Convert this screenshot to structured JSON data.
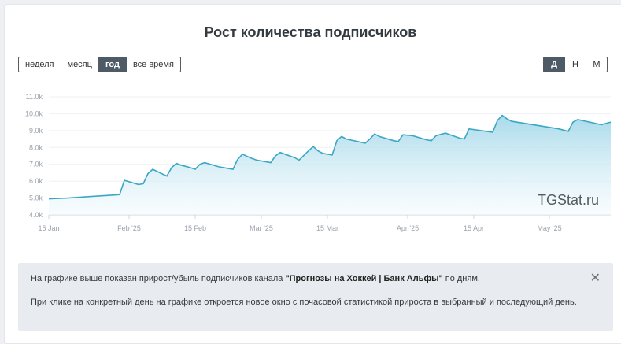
{
  "card": {
    "title": "Рост количества подписчиков"
  },
  "period_tabs": [
    "неделя",
    "месяц",
    "год",
    "все время"
  ],
  "period_active": "год",
  "granularity_tabs": [
    "Д",
    "Н",
    "М"
  ],
  "granularity_active": "Д",
  "watermark": "TGStat.ru",
  "colors": {
    "line": "#3ba7c4",
    "fill_top": "#9fd6e8",
    "fill_bottom": "#f2fafd",
    "active_button": "#4e5a66"
  },
  "chart_data": {
    "type": "area",
    "xlabel": "",
    "ylabel": "",
    "ylim": [
      4000,
      11000
    ],
    "y_ticks": [
      "4.0k",
      "5.0k",
      "6.0k",
      "7.0k",
      "8.0k",
      "9.0k",
      "10.0k",
      "11.0k"
    ],
    "x_ticks": [
      "15 Jan",
      "Feb '25",
      "15 Feb",
      "Mar '25",
      "15 Mar",
      "Apr '25",
      "15 Apr",
      "May '25"
    ],
    "x_tick_dates": [
      "2025-01-15",
      "2025-02-01",
      "2025-02-15",
      "2025-03-01",
      "2025-03-15",
      "2025-04-01",
      "2025-04-15",
      "2025-05-01"
    ],
    "x_range": [
      "2025-01-15",
      "2025-05-14"
    ],
    "grid": true,
    "series": [
      {
        "x": [
          "2025-01-15",
          "2025-01-19",
          "2025-01-23",
          "2025-01-27",
          "2025-01-29",
          "2025-01-30",
          "2025-01-31",
          "2025-02-03",
          "2025-02-04",
          "2025-02-05",
          "2025-02-06",
          "2025-02-09",
          "2025-02-10",
          "2025-02-11",
          "2025-02-12",
          "2025-02-14",
          "2025-02-15",
          "2025-02-16",
          "2025-02-17",
          "2025-02-20",
          "2025-02-23",
          "2025-02-24",
          "2025-02-25",
          "2025-02-27",
          "2025-02-28",
          "2025-03-03",
          "2025-03-04",
          "2025-03-05",
          "2025-03-06",
          "2025-03-08",
          "2025-03-09",
          "2025-03-11",
          "2025-03-12",
          "2025-03-13",
          "2025-03-14",
          "2025-03-16",
          "2025-03-17",
          "2025-03-18",
          "2025-03-19",
          "2025-03-23",
          "2025-03-24",
          "2025-03-25",
          "2025-03-26",
          "2025-03-29",
          "2025-03-30",
          "2025-03-31",
          "2025-04-02",
          "2025-04-05",
          "2025-04-06",
          "2025-04-07",
          "2025-04-09",
          "2025-04-12",
          "2025-04-13",
          "2025-04-14",
          "2025-04-19",
          "2025-04-20",
          "2025-04-21",
          "2025-04-22",
          "2025-04-23",
          "2025-05-03",
          "2025-05-05",
          "2025-05-06",
          "2025-05-07",
          "2025-05-12",
          "2025-05-14"
        ],
        "values": [
          4950,
          5000,
          5080,
          5150,
          5180,
          5200,
          6050,
          5800,
          5850,
          6450,
          6700,
          6300,
          6800,
          7050,
          6950,
          6800,
          6700,
          7000,
          7100,
          6850,
          6700,
          7300,
          7600,
          7350,
          7250,
          7100,
          7500,
          7700,
          7600,
          7400,
          7250,
          7800,
          8050,
          7800,
          7650,
          7550,
          8400,
          8650,
          8500,
          8250,
          8500,
          8800,
          8650,
          8400,
          8350,
          8750,
          8700,
          8450,
          8400,
          8700,
          8850,
          8550,
          8500,
          9100,
          8900,
          9600,
          9900,
          9700,
          9550,
          9100,
          8950,
          9500,
          9650,
          9350,
          9500
        ]
      }
    ]
  },
  "info": {
    "line1_before": "На графике выше показан прирост/убыль подписчиков канала ",
    "channel": "\"Прогнозы на Хоккей | Банк Альфы\"",
    "line1_after": " по дням.",
    "line2": "При клике на конкретный день на графике откроется новое окно с почасовой статистикой прироста в выбранный и последующий день."
  }
}
